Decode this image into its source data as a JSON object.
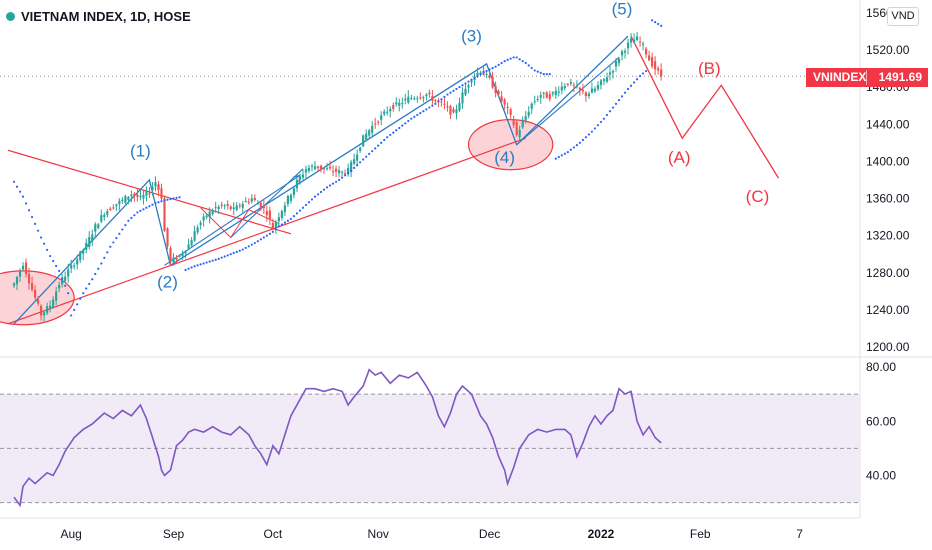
{
  "header": {
    "title": "VIETNAM INDEX, 1D, HOSE",
    "currency_button": "VND"
  },
  "price_tag": {
    "symbol": "VNINDEX",
    "value": "1491.69"
  },
  "colors": {
    "up": "#26a69a",
    "down": "#ef5350",
    "wave_blue": "#2b7bc4",
    "projection_red": "#f23645",
    "sar_blue": "#2962ff",
    "rsi_line": "#7e57c2",
    "rsi_band_fill": "#ede7f6"
  },
  "chart_data": [
    {
      "type": "candlestick",
      "title": "VIETNAM INDEX, 1D, HOSE",
      "x_tick_labels": [
        "Aug",
        "Sep",
        "Oct",
        "Nov",
        "Dec",
        "2022",
        "Feb",
        "7"
      ],
      "y_tick_labels": [
        "1200.00",
        "1240.00",
        "1280.00",
        "1320.00",
        "1360.00",
        "1400.00",
        "1440.00",
        "1480.00",
        "1520.00"
      ],
      "ylim": [
        1200,
        1560
      ],
      "last_price": 1491.69,
      "price_anchors": [
        [
          0,
          1268
        ],
        [
          3,
          1290
        ],
        [
          6,
          1262
        ],
        [
          9,
          1235
        ],
        [
          12,
          1245
        ],
        [
          15,
          1268
        ],
        [
          18,
          1282
        ],
        [
          21,
          1295
        ],
        [
          24,
          1310
        ],
        [
          27,
          1330
        ],
        [
          30,
          1345
        ],
        [
          33,
          1352
        ],
        [
          36,
          1358
        ],
        [
          39,
          1365
        ],
        [
          42,
          1360
        ],
        [
          45,
          1368
        ],
        [
          47,
          1378
        ],
        [
          49,
          1362
        ],
        [
          50,
          1325
        ],
        [
          52,
          1292
        ],
        [
          55,
          1298
        ],
        [
          58,
          1310
        ],
        [
          61,
          1330
        ],
        [
          64,
          1342
        ],
        [
          67,
          1350
        ],
        [
          70,
          1352
        ],
        [
          73,
          1348
        ],
        [
          76,
          1355
        ],
        [
          79,
          1360
        ],
        [
          82,
          1352
        ],
        [
          84,
          1345
        ],
        [
          86,
          1328
        ],
        [
          88,
          1342
        ],
        [
          91,
          1360
        ],
        [
          94,
          1378
        ],
        [
          97,
          1392
        ],
        [
          100,
          1395
        ],
        [
          103,
          1392
        ],
        [
          106,
          1390
        ],
        [
          109,
          1388
        ],
        [
          111,
          1390
        ],
        [
          113,
          1403
        ],
        [
          116,
          1425
        ],
        [
          119,
          1438
        ],
        [
          122,
          1448
        ],
        [
          125,
          1458
        ],
        [
          128,
          1462
        ],
        [
          131,
          1468
        ],
        [
          134,
          1470
        ],
        [
          137,
          1472
        ],
        [
          140,
          1465
        ],
        [
          143,
          1460
        ],
        [
          146,
          1450
        ],
        [
          149,
          1472
        ],
        [
          152,
          1490
        ],
        [
          155,
          1498
        ],
        [
          158,
          1488
        ],
        [
          161,
          1470
        ],
        [
          164,
          1455
        ],
        [
          166,
          1440
        ],
        [
          167,
          1428
        ],
        [
          169,
          1442
        ],
        [
          172,
          1462
        ],
        [
          175,
          1472
        ],
        [
          178,
          1470
        ],
        [
          181,
          1478
        ],
        [
          184,
          1485
        ],
        [
          187,
          1478
        ],
        [
          190,
          1472
        ],
        [
          193,
          1478
        ],
        [
          196,
          1488
        ],
        [
          199,
          1500
        ],
        [
          202,
          1518
        ],
        [
          205,
          1530
        ],
        [
          207,
          1532
        ],
        [
          209,
          1524
        ],
        [
          211,
          1510
        ],
        [
          213,
          1500
        ],
        [
          215,
          1492
        ]
      ],
      "sar_anchors": [
        [
          0,
          1378
        ],
        [
          3,
          1362
        ],
        [
          6,
          1340
        ],
        [
          9,
          1318
        ],
        [
          12,
          1298
        ],
        [
          15,
          1282
        ],
        [
          18,
          1258
        ],
        [
          19,
          1234
        ],
        [
          20,
          1240
        ],
        [
          23,
          1258
        ],
        [
          26,
          1273
        ],
        [
          29,
          1290
        ],
        [
          32,
          1308
        ],
        [
          35,
          1322
        ],
        [
          38,
          1336
        ],
        [
          41,
          1345
        ],
        [
          44,
          1350
        ],
        [
          47,
          1355
        ],
        [
          50,
          1358
        ],
        [
          53,
          1360
        ],
        [
          56,
          1362
        ],
        [
          57,
          1283
        ],
        [
          60,
          1287
        ],
        [
          64,
          1291
        ],
        [
          68,
          1295
        ],
        [
          72,
          1300
        ],
        [
          76,
          1305
        ],
        [
          80,
          1312
        ],
        [
          84,
          1320
        ],
        [
          86,
          1324
        ],
        [
          88,
          1330
        ],
        [
          92,
          1338
        ],
        [
          96,
          1350
        ],
        [
          100,
          1362
        ],
        [
          104,
          1372
        ],
        [
          108,
          1380
        ],
        [
          112,
          1390
        ],
        [
          116,
          1402
        ],
        [
          120,
          1414
        ],
        [
          124,
          1426
        ],
        [
          128,
          1436
        ],
        [
          132,
          1446
        ],
        [
          136,
          1454
        ],
        [
          140,
          1462
        ],
        [
          144,
          1472
        ],
        [
          148,
          1480
        ],
        [
          152,
          1488
        ],
        [
          156,
          1496
        ],
        [
          160,
          1502
        ],
        [
          163,
          1508
        ],
        [
          166,
          1512
        ],
        [
          167,
          1512
        ],
        [
          170,
          1506
        ],
        [
          173,
          1498
        ],
        [
          176,
          1494
        ],
        [
          179,
          1494
        ],
        [
          180,
          1403
        ],
        [
          184,
          1410
        ],
        [
          188,
          1420
        ],
        [
          192,
          1432
        ],
        [
          196,
          1446
        ],
        [
          200,
          1462
        ],
        [
          204,
          1478
        ],
        [
          208,
          1492
        ],
        [
          211,
          1500
        ],
        [
          212,
          1552
        ],
        [
          214,
          1548
        ],
        [
          216,
          1544
        ]
      ],
      "elliott_wave_labels": [
        "(1)",
        "(2)",
        "(3)",
        "(4)",
        "(5)"
      ],
      "elliott_wave_points": [
        [
          0,
          1225
        ],
        [
          45,
          1380
        ],
        [
          52,
          1288
        ],
        [
          157,
          1505
        ],
        [
          167,
          1418
        ],
        [
          204,
          1535
        ]
      ],
      "projection_labels": [
        "(A)",
        "(B)",
        "(C)"
      ],
      "projection_points": [
        [
          205,
          1535
        ],
        [
          222,
          1425
        ],
        [
          235,
          1482
        ],
        [
          254,
          1382
        ]
      ],
      "trend_lines": [
        {
          "from": [
            -2,
            1412
          ],
          "to": [
            92,
            1322
          ],
          "color": "#f23645"
        },
        {
          "from": [
            -2,
            1225
          ],
          "to": [
            170,
            1425
          ],
          "color": "#f23645"
        }
      ],
      "ellipses": [
        {
          "center": [
            3,
            1253
          ],
          "radius_bars": 17,
          "radius_price": 29
        },
        {
          "center": [
            165,
            1418
          ],
          "radius_bars": 14,
          "radius_price": 27
        }
      ]
    },
    {
      "type": "line",
      "name": "",
      "y_tick_labels": [
        "40.00",
        "60.00",
        "80.00"
      ],
      "ylim": [
        27,
        82
      ],
      "band": [
        30,
        70
      ],
      "midline": 50,
      "rsi_anchors": [
        [
          0,
          32
        ],
        [
          2,
          29
        ],
        [
          3,
          36
        ],
        [
          5,
          39
        ],
        [
          7,
          37
        ],
        [
          9,
          39
        ],
        [
          11,
          41
        ],
        [
          13,
          40
        ],
        [
          15,
          44
        ],
        [
          17,
          49
        ],
        [
          20,
          54
        ],
        [
          23,
          57
        ],
        [
          26,
          59
        ],
        [
          28,
          61
        ],
        [
          30,
          63
        ],
        [
          33,
          61
        ],
        [
          36,
          64
        ],
        [
          39,
          62
        ],
        [
          42,
          66
        ],
        [
          44,
          61
        ],
        [
          46,
          54
        ],
        [
          48,
          47
        ],
        [
          49,
          42
        ],
        [
          50,
          40
        ],
        [
          52,
          42
        ],
        [
          54,
          51
        ],
        [
          56,
          53
        ],
        [
          58,
          56
        ],
        [
          60,
          57
        ],
        [
          63,
          56
        ],
        [
          66,
          58
        ],
        [
          69,
          56
        ],
        [
          72,
          55
        ],
        [
          75,
          58
        ],
        [
          78,
          55
        ],
        [
          80,
          51
        ],
        [
          82,
          48
        ],
        [
          84,
          44
        ],
        [
          86,
          51
        ],
        [
          88,
          48
        ],
        [
          90,
          55
        ],
        [
          92,
          62
        ],
        [
          95,
          68
        ],
        [
          97,
          72
        ],
        [
          100,
          72
        ],
        [
          103,
          71
        ],
        [
          106,
          72
        ],
        [
          109,
          71
        ],
        [
          111,
          66
        ],
        [
          113,
          69
        ],
        [
          116,
          73
        ],
        [
          118,
          79
        ],
        [
          120,
          77
        ],
        [
          122,
          78
        ],
        [
          125,
          74
        ],
        [
          128,
          77
        ],
        [
          131,
          76
        ],
        [
          134,
          78
        ],
        [
          137,
          73
        ],
        [
          139,
          69
        ],
        [
          141,
          62
        ],
        [
          143,
          58
        ],
        [
          145,
          63
        ],
        [
          147,
          70
        ],
        [
          149,
          73
        ],
        [
          152,
          70
        ],
        [
          155,
          62
        ],
        [
          157,
          59
        ],
        [
          159,
          54
        ],
        [
          161,
          47
        ],
        [
          163,
          42
        ],
        [
          164,
          37
        ],
        [
          166,
          43
        ],
        [
          168,
          50
        ],
        [
          171,
          55
        ],
        [
          174,
          57
        ],
        [
          177,
          56
        ],
        [
          180,
          57
        ],
        [
          183,
          57
        ],
        [
          185,
          55
        ],
        [
          187,
          47
        ],
        [
          189,
          52
        ],
        [
          191,
          58
        ],
        [
          193,
          62
        ],
        [
          195,
          59
        ],
        [
          197,
          62
        ],
        [
          199,
          64
        ],
        [
          201,
          72
        ],
        [
          203,
          70
        ],
        [
          205,
          71
        ],
        [
          207,
          60
        ],
        [
          209,
          55
        ],
        [
          211,
          58
        ],
        [
          213,
          54
        ],
        [
          215,
          52
        ]
      ]
    }
  ]
}
